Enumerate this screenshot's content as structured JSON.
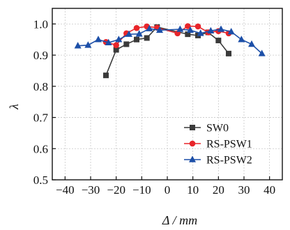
{
  "chart_data": {
    "type": "line",
    "title": "",
    "xlabel": "Δ / mm",
    "ylabel": "λ",
    "xlim": [
      -45,
      45
    ],
    "ylim": [
      0.5,
      1.05
    ],
    "xticks": [
      -40,
      -30,
      -20,
      -10,
      0,
      10,
      20,
      30,
      40
    ],
    "yticks": [
      0.5,
      0.6,
      0.7,
      0.8,
      0.9,
      1.0
    ],
    "xtick_labels": [
      "−40",
      "−30",
      "−20",
      "−10",
      "0",
      "10",
      "20",
      "30",
      "40"
    ],
    "ytick_labels": [
      "0.5",
      "0.6",
      "0.7",
      "0.8",
      "0.9",
      "1.0"
    ],
    "grid": true,
    "legend_position": "bottom-right",
    "series": [
      {
        "name": "SW0",
        "color": "#3a3a3a",
        "marker": "square",
        "x": [
          -24,
          -20,
          -16,
          -12,
          -8,
          -4,
          8,
          12,
          16,
          20,
          24
        ],
        "y": [
          0.835,
          0.917,
          0.935,
          0.95,
          0.955,
          0.99,
          0.967,
          0.963,
          0.973,
          0.947,
          0.905
        ]
      },
      {
        "name": "RS-PSW1",
        "color": "#e8252a",
        "marker": "circle",
        "x": [
          -24,
          -20,
          -16,
          -12,
          -8,
          -4,
          4,
          8,
          12,
          16,
          20,
          24
        ],
        "y": [
          0.942,
          0.932,
          0.97,
          0.987,
          0.992,
          0.988,
          0.97,
          0.993,
          0.992,
          0.973,
          0.977,
          0.97
        ]
      },
      {
        "name": "RS-PSW2",
        "color": "#1c4fa8",
        "marker": "triangle",
        "x": [
          -35,
          -31,
          -27,
          -23,
          -19,
          -15,
          -11,
          -7,
          -3,
          5,
          9,
          13,
          17,
          21,
          25,
          29,
          33,
          37
        ],
        "y": [
          0.93,
          0.932,
          0.95,
          0.94,
          0.95,
          0.967,
          0.968,
          0.985,
          0.98,
          0.983,
          0.98,
          0.97,
          0.978,
          0.983,
          0.975,
          0.95,
          0.935,
          0.905
        ]
      }
    ]
  }
}
